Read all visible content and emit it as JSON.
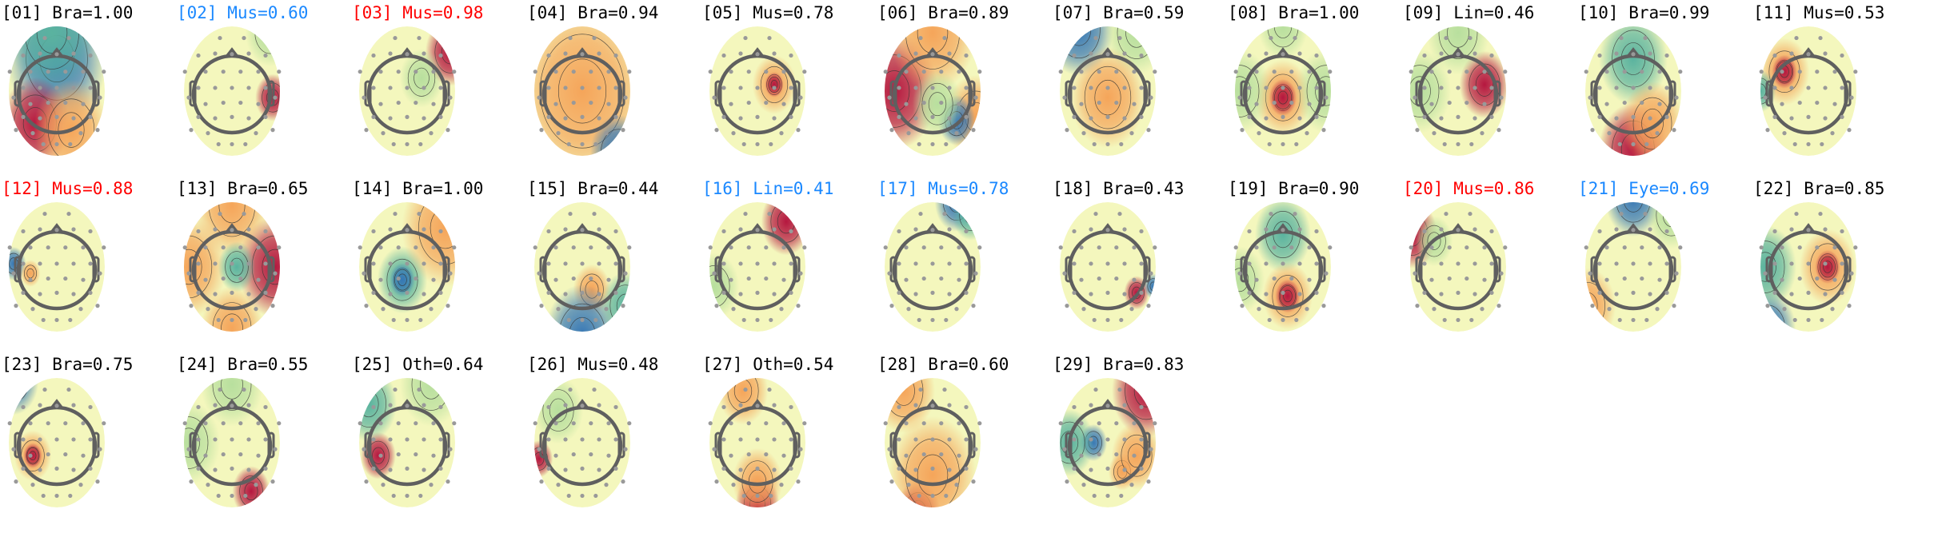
{
  "colors": {
    "black": "#000000",
    "blue": "#1a88ff",
    "red": "#ff0000"
  },
  "components": [
    {
      "index": "[01]",
      "label": "Bra=1.00",
      "color": "black"
    },
    {
      "index": "[02]",
      "label": "Mus=0.60",
      "color": "blue"
    },
    {
      "index": "[03]",
      "label": "Mus=0.98",
      "color": "red"
    },
    {
      "index": "[04]",
      "label": "Bra=0.94",
      "color": "black"
    },
    {
      "index": "[05]",
      "label": "Mus=0.78",
      "color": "black"
    },
    {
      "index": "[06]",
      "label": "Bra=0.89",
      "color": "black"
    },
    {
      "index": "[07]",
      "label": "Bra=0.59",
      "color": "black"
    },
    {
      "index": "[08]",
      "label": "Bra=1.00",
      "color": "black"
    },
    {
      "index": "[09]",
      "label": "Lin=0.46",
      "color": "black"
    },
    {
      "index": "[10]",
      "label": "Bra=0.99",
      "color": "black"
    },
    {
      "index": "[11]",
      "label": "Mus=0.53",
      "color": "black"
    },
    {
      "index": "[12]",
      "label": "Mus=0.88",
      "color": "red"
    },
    {
      "index": "[13]",
      "label": "Bra=0.65",
      "color": "black"
    },
    {
      "index": "[14]",
      "label": "Bra=1.00",
      "color": "black"
    },
    {
      "index": "[15]",
      "label": "Bra=0.44",
      "color": "black"
    },
    {
      "index": "[16]",
      "label": "Lin=0.41",
      "color": "blue"
    },
    {
      "index": "[17]",
      "label": "Mus=0.78",
      "color": "blue"
    },
    {
      "index": "[18]",
      "label": "Bra=0.43",
      "color": "black"
    },
    {
      "index": "[19]",
      "label": "Bra=0.90",
      "color": "black"
    },
    {
      "index": "[20]",
      "label": "Mus=0.86",
      "color": "red"
    },
    {
      "index": "[21]",
      "label": "Eye=0.69",
      "color": "blue"
    },
    {
      "index": "[22]",
      "label": "Bra=0.85",
      "color": "black"
    },
    {
      "index": "[23]",
      "label": "Bra=0.75",
      "color": "black"
    },
    {
      "index": "[24]",
      "label": "Bra=0.55",
      "color": "black"
    },
    {
      "index": "[25]",
      "label": "Oth=0.64",
      "color": "black"
    },
    {
      "index": "[26]",
      "label": "Mus=0.48",
      "color": "black"
    },
    {
      "index": "[27]",
      "label": "Oth=0.54",
      "color": "black"
    },
    {
      "index": "[28]",
      "label": "Bra=0.60",
      "color": "black"
    },
    {
      "index": "[29]",
      "label": "Bra=0.83",
      "color": "black"
    }
  ]
}
